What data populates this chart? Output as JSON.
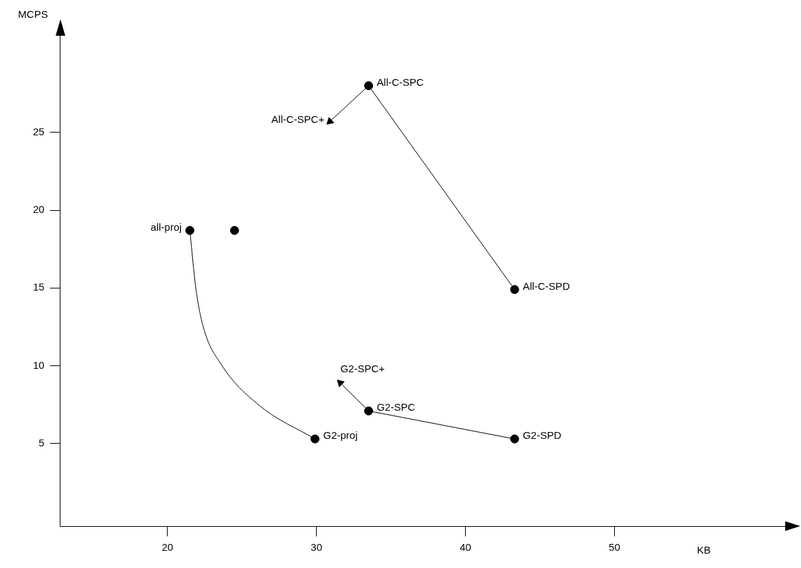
{
  "chart_data": {
    "type": "scatter",
    "xlabel": "KB",
    "ylabel": "MCPS",
    "xlim": [
      12.8,
      62.2
    ],
    "xticks": [
      20,
      30,
      40,
      50
    ],
    "ylim": [
      -0.3,
      31.3
    ],
    "yticks": [
      5,
      10,
      15,
      20,
      25
    ],
    "grid": false,
    "legend": false,
    "marker": "circle",
    "series": [
      {
        "type": "scatter",
        "color": "#000000",
        "x": [
          21.5,
          24.5,
          33.5,
          43.3,
          29.9,
          33.5,
          43.3
        ],
        "values": [
          18.7,
          18.7,
          28.0,
          14.9,
          5.3,
          7.1,
          5.3
        ]
      },
      {
        "type": "line",
        "color": "#000000",
        "marker": "none",
        "x": [
          21.5,
          21.9,
          22.4,
          23.6,
          26.1,
          29.9
        ],
        "values": [
          18.7,
          15.0,
          12.5,
          10.1,
          7.5,
          5.3
        ]
      },
      {
        "type": "line",
        "color": "#000000",
        "marker": "none",
        "x": [
          33.5,
          43.3
        ],
        "values": [
          28.0,
          14.9
        ]
      },
      {
        "type": "line",
        "color": "#000000",
        "marker": "none",
        "x": [
          33.5,
          43.3
        ],
        "values": [
          7.1,
          5.3
        ]
      },
      {
        "type": "line",
        "color": "#000000",
        "marker": "triangle",
        "x": [
          33.5,
          30.9
        ],
        "values": [
          28.0,
          25.7
        ]
      },
      {
        "type": "line",
        "color": "#000000",
        "marker": "triangle",
        "x": [
          33.5,
          31.6
        ],
        "values": [
          7.1,
          8.9
        ]
      }
    ],
    "annotations": [
      {
        "text": "all-proj",
        "x": 21.5,
        "y": 18.7
      },
      {
        "text": "All-C-SPC",
        "x": 33.5,
        "y": 28.0
      },
      {
        "text": "All-C-SPD",
        "x": 43.3,
        "y": 14.9
      },
      {
        "text": "G2-proj",
        "x": 29.9,
        "y": 5.3
      },
      {
        "text": "G2-SPC",
        "x": 33.5,
        "y": 7.1
      },
      {
        "text": "G2-SPD",
        "x": 43.3,
        "y": 5.3
      },
      {
        "text": "All-C-SPC+",
        "x": 30.9,
        "y": 25.7
      },
      {
        "text": "G2-SPC+",
        "x": 31.6,
        "y": 8.9
      }
    ]
  }
}
